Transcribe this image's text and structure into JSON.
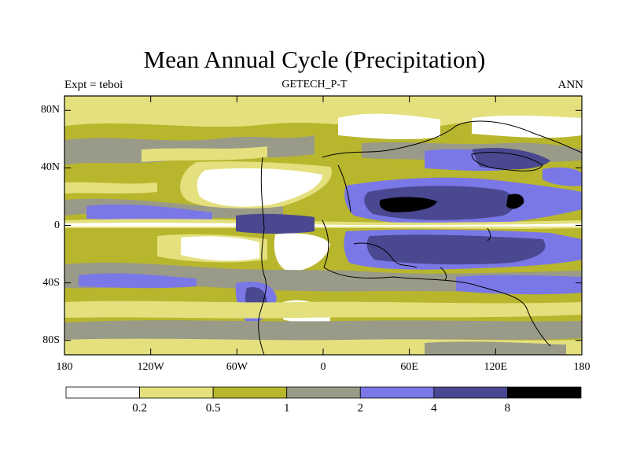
{
  "title": "Mean Annual Cycle (Precipitation)",
  "subtitle_left": "Expt = teboi",
  "subtitle_center": "GETECH_P-T",
  "subtitle_right": "ANN",
  "map": {
    "lon_range": [
      -180,
      180
    ],
    "lat_range": [
      -90,
      90
    ],
    "x_ticks": [
      {
        "lon": -180,
        "label": "180"
      },
      {
        "lon": -120,
        "label": "120W"
      },
      {
        "lon": -60,
        "label": "60W"
      },
      {
        "lon": 0,
        "label": "0"
      },
      {
        "lon": 60,
        "label": "60E"
      },
      {
        "lon": 120,
        "label": "120E"
      },
      {
        "lon": 180,
        "label": "180"
      }
    ],
    "y_ticks": [
      {
        "lat": 80,
        "label": "80N"
      },
      {
        "lat": 40,
        "label": "40N"
      },
      {
        "lat": 0,
        "label": "0"
      },
      {
        "lat": -40,
        "label": "40S"
      },
      {
        "lat": -80,
        "label": "80S"
      }
    ]
  },
  "colorbar": {
    "colors": [
      "#ffffff",
      "#e4e07e",
      "#b8b62c",
      "#9a9a88",
      "#7a78e6",
      "#4a4890",
      "#000000"
    ],
    "boundary_labels": [
      "0.2",
      "0.5",
      "1",
      "2",
      "4",
      "8"
    ]
  }
}
